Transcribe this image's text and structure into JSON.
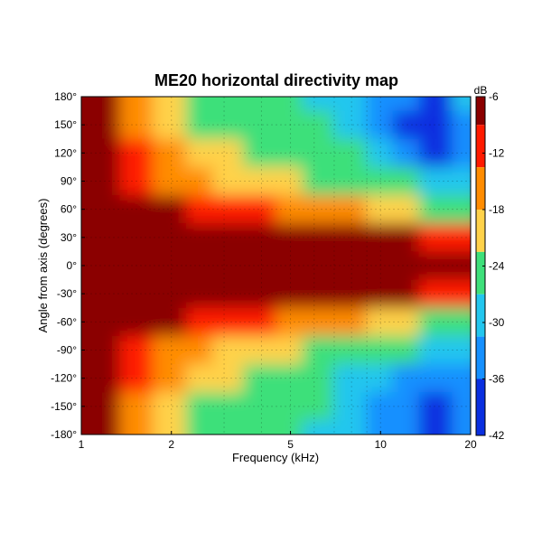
{
  "chart_data": {
    "type": "heatmap",
    "title": "ME20 horizontal directivity map",
    "xlabel": "Frequency (kHz)",
    "ylabel": "Angle from axis (degrees)",
    "x_scale": "log",
    "xlim": [
      1,
      20
    ],
    "ylim": [
      -180,
      180
    ],
    "x_ticks": [
      "1",
      "2",
      "5",
      "10",
      "20"
    ],
    "y_ticks": [
      "180°",
      "150°",
      "120°",
      "90°",
      "60°",
      "30°",
      "0°",
      "-30°",
      "-60°",
      "-90°",
      "-120°",
      "-150°",
      "-180°"
    ],
    "colorbar": {
      "unit": "dB",
      "range": [
        -42,
        -6
      ],
      "ticks": [
        "-6",
        "-12",
        "-18",
        "-24",
        "-30",
        "-36",
        "-42"
      ],
      "levels": [
        {
          "min": -9,
          "color": "#8b0000"
        },
        {
          "min": -13.5,
          "color": "#ff1a00"
        },
        {
          "min": -18,
          "color": "#ff8c00"
        },
        {
          "min": -22.5,
          "color": "#ffd24a"
        },
        {
          "min": -27,
          "color": "#3ee07a"
        },
        {
          "min": -31.5,
          "color": "#22c6ee"
        },
        {
          "min": -36,
          "color": "#1590ff"
        },
        {
          "min": -99,
          "color": "#0a2fe0"
        }
      ]
    },
    "grid": true,
    "data": {
      "description_rows": "angles",
      "frequencies_khz": [
        1,
        1.2,
        1.5,
        2,
        2.5,
        3,
        4,
        5,
        6,
        8,
        10,
        12,
        15,
        20
      ],
      "angles_deg": [
        180,
        150,
        120,
        90,
        60,
        30,
        0,
        -30,
        -60,
        -90,
        -120,
        -150,
        -180
      ],
      "values_db": [
        [
          -6,
          -9,
          -16,
          -20,
          -24,
          -25,
          -25,
          -27,
          -28,
          -30,
          -32,
          -36,
          -40,
          -30
        ],
        [
          -6,
          -9,
          -15,
          -19,
          -23,
          -25,
          -25,
          -24,
          -26,
          -30,
          -33,
          -37,
          -39,
          -33
        ],
        [
          -6,
          -7,
          -13,
          -18,
          -20,
          -22,
          -23,
          -25,
          -26,
          -27,
          -28,
          -34,
          -37,
          -34
        ],
        [
          -6,
          -6,
          -11,
          -16,
          -18,
          -19,
          -20,
          -22,
          -23,
          -24,
          -25,
          -27,
          -30,
          -29
        ],
        [
          -6,
          -6,
          -8,
          -9,
          -10,
          -11,
          -12,
          -14,
          -15,
          -17,
          -19,
          -22,
          -24,
          -23
        ],
        [
          -6,
          -6,
          -6,
          -6,
          -6,
          -6,
          -6,
          -6,
          -6,
          -7,
          -8,
          -9,
          -11,
          -13
        ],
        [
          -6,
          -6,
          -6,
          -6,
          -6,
          -6,
          -6,
          -6,
          -6,
          -6,
          -6,
          -6,
          -6,
          -6
        ],
        [
          -6,
          -6,
          -6,
          -6,
          -6,
          -6,
          -6,
          -6,
          -6,
          -7,
          -8,
          -9,
          -11,
          -13
        ],
        [
          -6,
          -6,
          -8,
          -9,
          -11,
          -12,
          -13,
          -14,
          -15,
          -17,
          -19,
          -22,
          -24,
          -23
        ],
        [
          -6,
          -6,
          -11,
          -16,
          -18,
          -19,
          -20,
          -22,
          -23,
          -24,
          -25,
          -27,
          -29,
          -28
        ],
        [
          -6,
          -7,
          -13,
          -18,
          -20,
          -22,
          -24,
          -25,
          -26,
          -28,
          -29,
          -33,
          -36,
          -33
        ],
        [
          -6,
          -9,
          -15,
          -19,
          -23,
          -25,
          -26,
          -25,
          -27,
          -30,
          -33,
          -36,
          -38,
          -33
        ],
        [
          -6,
          -9,
          -16,
          -20,
          -24,
          -25,
          -25,
          -27,
          -28,
          -30,
          -32,
          -36,
          -39,
          -32
        ]
      ]
    }
  }
}
